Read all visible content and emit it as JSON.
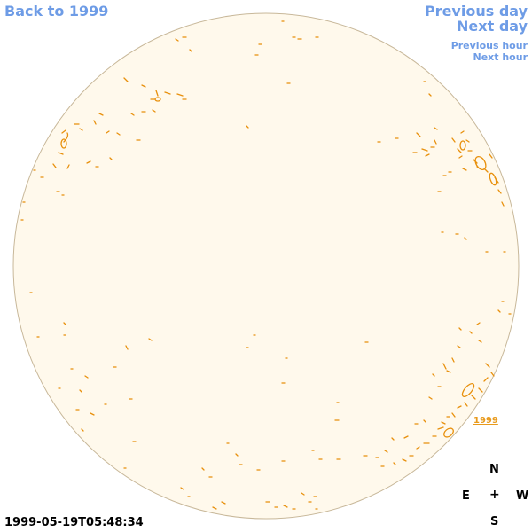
{
  "nav": {
    "back_label": "Back to 1999",
    "prev_day_label": "Previous day",
    "next_day_label": "Next day",
    "prev_hour_label": "Previous hour",
    "next_hour_label": "Next hour"
  },
  "year_link_label": "1999",
  "compass": {
    "north": "N",
    "east": "E",
    "center": "+",
    "west": "W",
    "south": "S"
  },
  "timestamp": "1999-05-19T05:48:34",
  "colors": {
    "nav_link": "#6e9ce6",
    "disc_fill": "#fff9ec",
    "disc_edge": "#c8b89a",
    "plage_contour": "#e8900c"
  }
}
